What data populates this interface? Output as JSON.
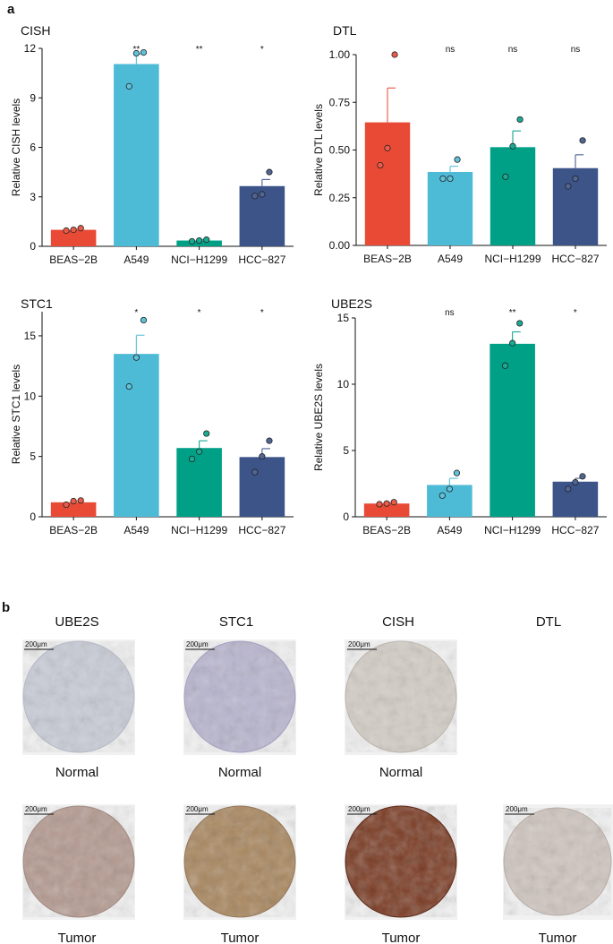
{
  "panel_labels": {
    "a": "a",
    "b": "b"
  },
  "colors": {
    "BEAS-2B": "#E84A35",
    "A549": "#4DBBD6",
    "NCI-H1299": "#00A087",
    "HCC-827": "#3C5488"
  },
  "chart_data": [
    {
      "type": "bar",
      "title": "CISH",
      "ylabel": "Relative CISH levels",
      "ylim": [
        0,
        12
      ],
      "yticks": [
        0,
        3,
        6,
        9,
        12
      ],
      "ytick_labels": [
        "0",
        "3",
        "6",
        "9",
        "12"
      ],
      "categories": [
        "BEAS−2B",
        "A549",
        "NCI−H1299",
        "HCC−827"
      ],
      "values": [
        1.0,
        11.05,
        0.35,
        3.65
      ],
      "errors": [
        0.05,
        0.6,
        0.05,
        0.4
      ],
      "points": [
        [
          0.95,
          1.0,
          1.1
        ],
        [
          9.7,
          11.7,
          11.75
        ],
        [
          0.3,
          0.35,
          0.4
        ],
        [
          3.05,
          3.15,
          4.5
        ]
      ],
      "significance": [
        "",
        "**",
        "**",
        "*"
      ]
    },
    {
      "type": "bar",
      "title": "DTL",
      "ylabel": "Relative DTL levels",
      "ylim": [
        0,
        1.0
      ],
      "yticks": [
        0,
        0.25,
        0.5,
        0.75,
        1.0
      ],
      "ytick_labels": [
        "0.00",
        "0.25",
        "0.50",
        "0.75",
        "1.00"
      ],
      "categories": [
        "BEAS−2B",
        "A549",
        "NCI−H1299",
        "HCC−827"
      ],
      "values": [
        0.645,
        0.385,
        0.515,
        0.405
      ],
      "errors": [
        0.18,
        0.03,
        0.085,
        0.07
      ],
      "points": [
        [
          0.42,
          0.51,
          1.0
        ],
        [
          0.35,
          0.35,
          0.45
        ],
        [
          0.36,
          0.52,
          0.66
        ],
        [
          0.31,
          0.35,
          0.55
        ]
      ],
      "significance": [
        "",
        "ns",
        "ns",
        "ns"
      ]
    },
    {
      "type": "bar",
      "title": "STC1",
      "ylabel": "Relative STC1 levels",
      "ylim": [
        0,
        17
      ],
      "yticks": [
        0,
        5,
        10,
        15
      ],
      "ytick_labels": [
        "0",
        "5",
        "10",
        "15"
      ],
      "categories": [
        "BEAS−2B",
        "A549",
        "NCI−H1299",
        "HCC−827"
      ],
      "values": [
        1.2,
        13.5,
        5.7,
        4.95
      ],
      "errors": [
        0.1,
        1.55,
        0.6,
        0.7
      ],
      "points": [
        [
          1.0,
          1.3,
          1.35
        ],
        [
          10.8,
          13.2,
          16.3
        ],
        [
          4.8,
          5.4,
          6.9
        ],
        [
          3.7,
          5.0,
          6.3
        ]
      ],
      "significance": [
        "",
        "*",
        "*",
        "*"
      ]
    },
    {
      "type": "bar",
      "title": "UBE2S",
      "ylabel": "Relative UBE2S levels",
      "ylim": [
        0,
        15
      ],
      "yticks": [
        0,
        5,
        10,
        15
      ],
      "ytick_labels": [
        "0",
        "5",
        "10",
        "15"
      ],
      "categories": [
        "BEAS−2B",
        "A549",
        "NCI−H1299",
        "HCC−827"
      ],
      "values": [
        1.0,
        2.4,
        13.05,
        2.65
      ],
      "errors": [
        0.05,
        0.5,
        0.9,
        0.25
      ],
      "points": [
        [
          0.95,
          1.0,
          1.1
        ],
        [
          1.6,
          2.1,
          3.3
        ],
        [
          11.4,
          13.1,
          14.6
        ],
        [
          2.1,
          2.6,
          3.05
        ]
      ],
      "significance": [
        "",
        "ns",
        "**",
        "*"
      ]
    }
  ],
  "ihc": {
    "scale_text": "200μm",
    "columns": [
      {
        "gene": "UBE2S",
        "normal": "Normal",
        "tumor": "Tumor"
      },
      {
        "gene": "STC1",
        "normal": "Normal",
        "tumor": "Tumor"
      },
      {
        "gene": "CISH",
        "normal": "Normal",
        "tumor": "Tumor"
      },
      {
        "gene": "DTL",
        "normal": "",
        "tumor": "Tumor"
      }
    ]
  }
}
